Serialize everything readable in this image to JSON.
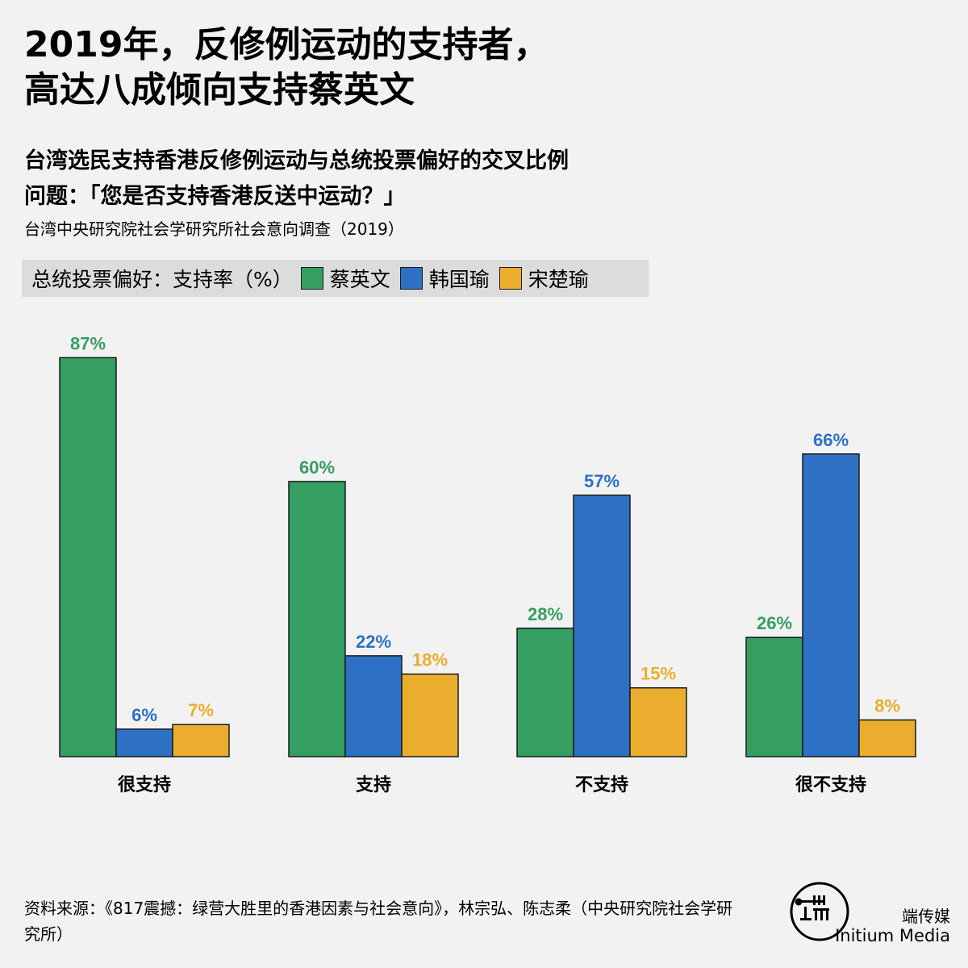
{
  "title": [
    "2019年，反修例运动的支持者，",
    "高达八成倾向支持蔡英文"
  ],
  "subtitle": [
    "台湾选民支持香港反修例运动与总统投票偏好的交叉比例",
    "问题：「您是否支持香港反送中运动？」"
  ],
  "survey_note": "台湾中央研究院社会学研究所社会意向调查（2019）",
  "legend_title": "总统投票偏好：支持率（%）",
  "source_note": "资料来源：《817震撼：绿营大胜里的香港因素与社会意向》，林宗弘、陈志柔（中央研究院社会学研究所）",
  "brand": {
    "cn": "端传媒",
    "en": "Initium Media"
  },
  "chart_data": {
    "type": "bar",
    "categories": [
      "很支持",
      "支持",
      "不支持",
      "很不支持"
    ],
    "series": [
      {
        "name": "蔡英文",
        "values": [
          87,
          60,
          28,
          26
        ],
        "color": "#349f61"
      },
      {
        "name": "韩国瑜",
        "values": [
          6,
          22,
          57,
          66
        ],
        "color": "#2e71c4"
      },
      {
        "name": "宋楚瑜",
        "values": [
          7,
          18,
          15,
          8
        ],
        "color": "#ebad2e"
      }
    ],
    "ylim": [
      0,
      100
    ],
    "value_suffix": "%",
    "grid": false,
    "legend_position": "top-left",
    "xlabel": "",
    "ylabel": ""
  }
}
